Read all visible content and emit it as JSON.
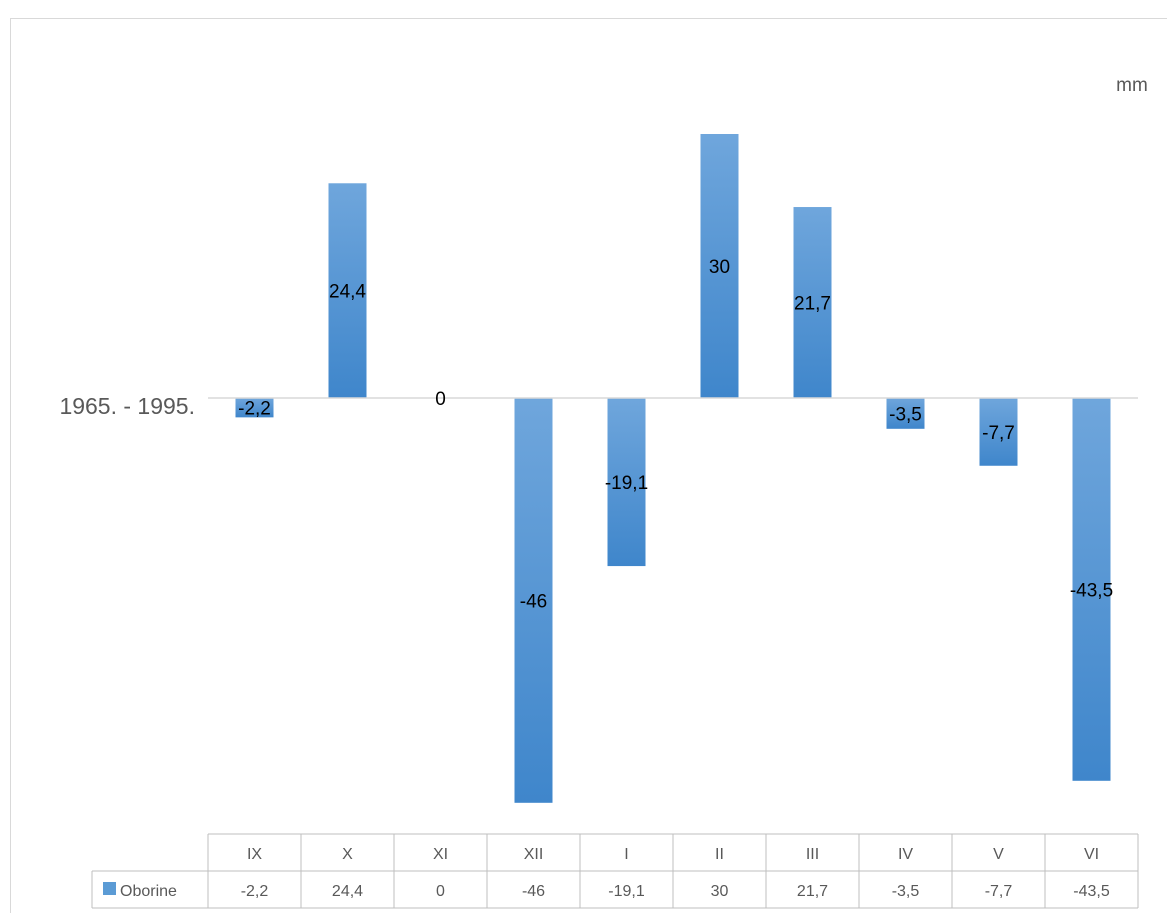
{
  "chart_data": {
    "type": "bar",
    "unit": "mm",
    "category_axis_label": "1965. - 1995.",
    "categories": [
      "IX",
      "X",
      "XI",
      "XII",
      "I",
      "II",
      "III",
      "IV",
      "V",
      "VI"
    ],
    "series": [
      {
        "name": "Oborine",
        "values": [
          -2.2,
          24.4,
          0,
          -46,
          -19.1,
          30,
          21.7,
          -3.5,
          -7.7,
          -43.5
        ],
        "labels": [
          "-2,2",
          "24,4",
          "0",
          "-46",
          "-19,1",
          "30",
          "21,7",
          "-3,5",
          "-7,7",
          "-43,5"
        ],
        "color": "#5b9bd5"
      }
    ],
    "data_table": true,
    "legend": "data-table",
    "grid": false
  }
}
